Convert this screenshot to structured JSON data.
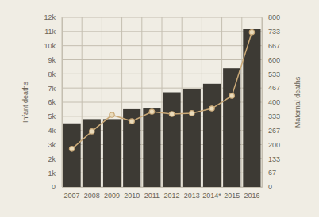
{
  "chart_data": {
    "type": "bar",
    "categories": [
      "2007",
      "2008",
      "2009",
      "2010",
      "2011",
      "2012",
      "2013",
      "2014*",
      "2015",
      "2016"
    ],
    "series": [
      {
        "name": "Infant deaths",
        "type": "bar",
        "color": "#3d3a34",
        "values": [
          4500,
          4800,
          4800,
          5500,
          5550,
          6700,
          6950,
          7300,
          8400,
          11200
        ]
      },
      {
        "name": "Maternal deaths",
        "type": "line",
        "axis": "y2",
        "color": "#c9a877",
        "marker": "circle",
        "values": [
          180,
          262,
          340,
          310,
          355,
          344,
          348,
          370,
          430,
          730
        ]
      }
    ],
    "ylim": [
      0,
      12000
    ],
    "yticks": [
      0,
      {
        "value": 1000,
        "label": "1k"
      },
      {
        "value": 2000,
        "label": "2k"
      },
      {
        "value": 3000,
        "label": "3k"
      },
      {
        "value": 4000,
        "label": "4k"
      },
      {
        "value": 5000,
        "label": "5k"
      },
      {
        "value": 6000,
        "label": "6k"
      },
      {
        "value": 7000,
        "label": "7k"
      },
      {
        "value": 8000,
        "label": "8k"
      },
      {
        "value": 9000,
        "label": "9k"
      },
      {
        "value": 10000,
        "label": "10k"
      },
      {
        "value": 11000,
        "label": "11k"
      },
      {
        "value": 12000,
        "label": "12k"
      }
    ],
    "y2lim": [
      0,
      800
    ],
    "y2ticks": [
      0,
      67,
      133,
      200,
      267,
      333,
      400,
      467,
      533,
      600,
      667,
      733,
      800
    ],
    "grid": true
  }
}
